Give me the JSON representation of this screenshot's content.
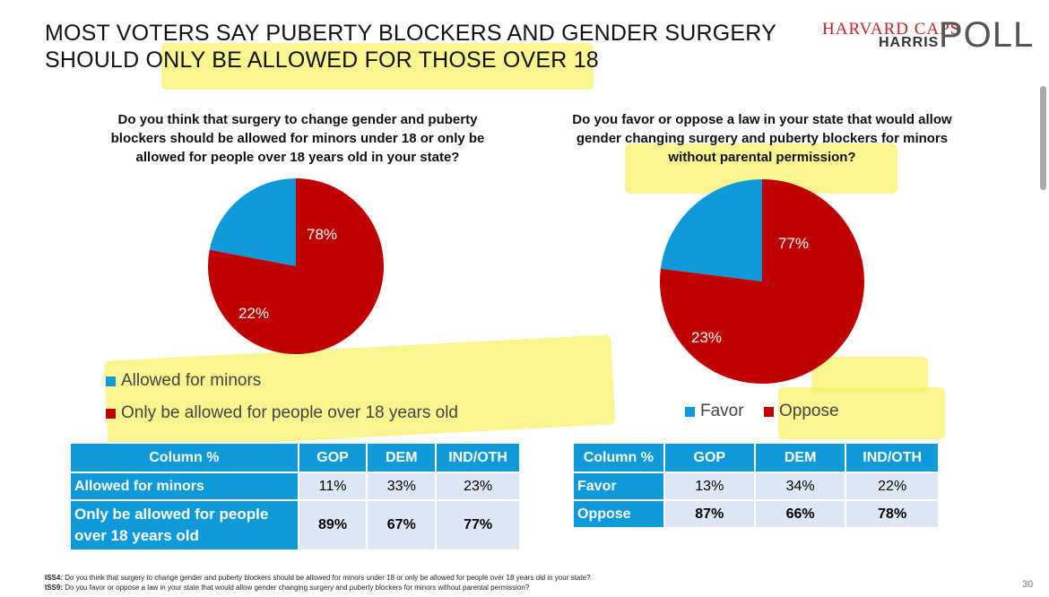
{
  "title_line1": "MOST VOTERS SAY PUBERTY BLOCKERS AND GENDER SURGERY",
  "title_line2": "SHOULD ONLY BE ALLOWED FOR THOSE OVER 18",
  "logo": {
    "line1": "HARVARD CAPS",
    "line2": "HARRIS",
    "poll": "POLL"
  },
  "left": {
    "question": "Do you think that surgery to change gender and puberty blockers should be allowed for minors under 18 or only be allowed for people over 18 years old in your state?",
    "legend": [
      "Allowed for minors",
      "Only be allowed for people over 18 years old"
    ],
    "table": {
      "headers": [
        "Column %",
        "GOP",
        "DEM",
        "IND/OTH"
      ],
      "rows": [
        {
          "label": "Allowed for minors",
          "values": [
            "11%",
            "33%",
            "23%"
          ]
        },
        {
          "label": "Only be allowed for people over 18 years old",
          "values": [
            "89%",
            "67%",
            "77%"
          ]
        }
      ]
    }
  },
  "right": {
    "question": "Do you favor or oppose a law in your state that would allow gender changing surgery and puberty blockers for minors without parental permission?",
    "legend": [
      "Favor",
      "Oppose"
    ],
    "table": {
      "headers": [
        "Column %",
        "GOP",
        "DEM",
        "IND/OTH"
      ],
      "rows": [
        {
          "label": "Favor",
          "values": [
            "13%",
            "34%",
            "22%"
          ]
        },
        {
          "label": "Oppose",
          "values": [
            "87%",
            "66%",
            "78%"
          ]
        }
      ]
    }
  },
  "chart_data": [
    {
      "type": "pie",
      "title": "Do you think that surgery to change gender and puberty blockers should be allowed for minors under 18 or only be allowed for people over 18 years old in your state?",
      "categories": [
        "Allowed for minors",
        "Only be allowed for people over 18 years old"
      ],
      "values": [
        22,
        78
      ],
      "labels": [
        "22%",
        "78%"
      ],
      "colors": [
        "#0e9ad8",
        "#c00000"
      ]
    },
    {
      "type": "pie",
      "title": "Do you favor or oppose a law in your state that would allow gender changing surgery and puberty blockers for minors without parental permission?",
      "categories": [
        "Favor",
        "Oppose"
      ],
      "values": [
        23,
        77
      ],
      "labels": [
        "23%",
        "77%"
      ],
      "colors": [
        "#0e9ad8",
        "#c00000"
      ]
    }
  ],
  "footnotes": [
    {
      "code": "ISS4:",
      "text": " Do you think that surgery to change gender and puberty blockers should be allowed for minors under 18 or only be allowed for people over 18 years old in your state?"
    },
    {
      "code": "ISS9:",
      "text": " Do you favor or oppose a law in your state that would allow gender changing surgery and puberty blockers for minors without parental permission?"
    }
  ],
  "page_number": "30"
}
